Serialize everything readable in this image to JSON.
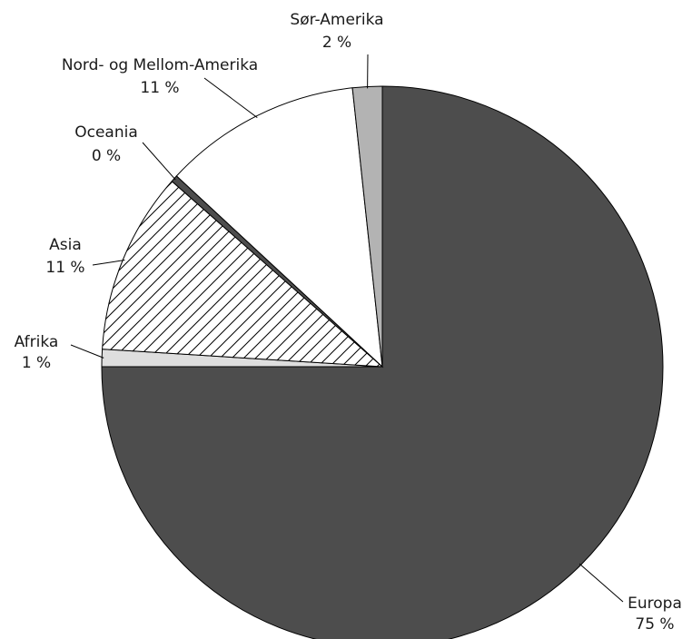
{
  "chart_data": {
    "type": "pie",
    "title": "",
    "start": "12 o'clock, clockwise",
    "slices": [
      {
        "name": "Europa",
        "value_label": "75 %",
        "value": 75.0,
        "fill": "#4d4d4d",
        "pattern": "solid"
      },
      {
        "name": "Afrika",
        "value_label": "1 %",
        "value": 1.0,
        "fill": "#dedede",
        "pattern": "solid"
      },
      {
        "name": "Asia",
        "value_label": "11 %",
        "value": 10.5,
        "fill": "#ffffff",
        "pattern": "diagonal-hatch"
      },
      {
        "name": "Oceania",
        "value_label": "0 %",
        "value": 0.4,
        "fill": "#4d4d4d",
        "pattern": "solid"
      },
      {
        "name": "Nord- og Mellom-Amerika",
        "value_label": "11 %",
        "value": 11.4,
        "fill": "#ffffff",
        "pattern": "solid"
      },
      {
        "name": "Sør-Amerika",
        "value_label": "2 %",
        "value": 1.7,
        "fill": "#b3b3b3",
        "pattern": "solid"
      }
    ]
  }
}
